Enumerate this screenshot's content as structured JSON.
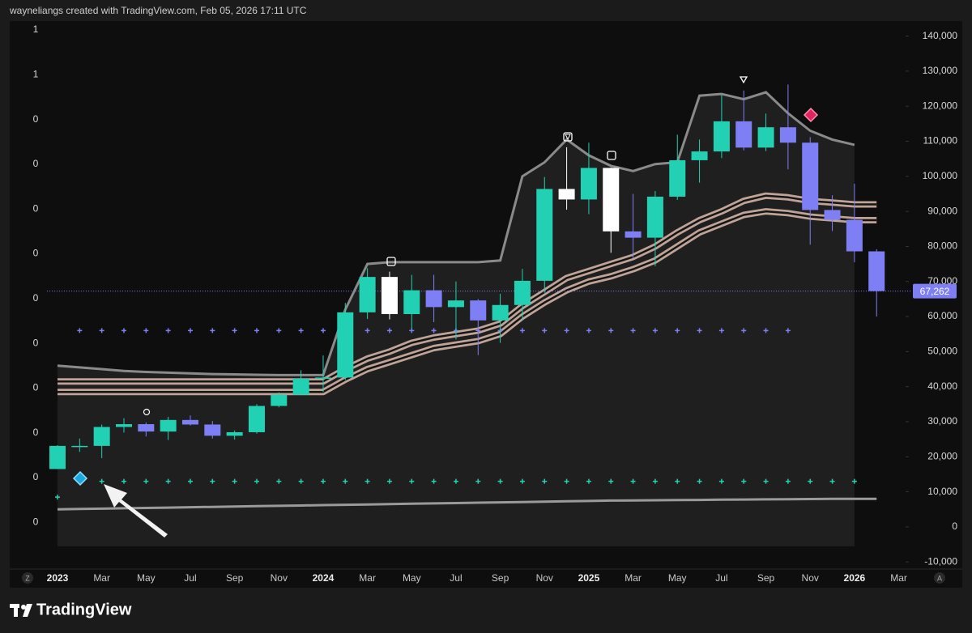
{
  "header": "wayneliangs created with TradingView.com, Feb 05, 2026 17:11 UTC",
  "brand": "TradingView",
  "axis_buttons": [
    "Z",
    "A"
  ],
  "chart_data": {
    "type": "candlestick",
    "categories": [
      "2023",
      null,
      "Mar",
      null,
      "May",
      null,
      "Jul",
      null,
      "Sep",
      null,
      "Nov",
      null,
      "2024",
      null,
      "Mar",
      null,
      "May",
      null,
      "Jul",
      null,
      "Sep",
      null,
      "Nov",
      null,
      "2025",
      null,
      "Mar",
      null,
      "May",
      null,
      "Jul",
      null,
      "Sep",
      null,
      "Nov",
      null,
      "2026",
      null,
      "Mar"
    ],
    "open": [
      16500,
      23100,
      23100,
      28500,
      29300,
      27200,
      30500,
      29200,
      26000,
      27000,
      34500,
      37700,
      42300,
      42600,
      61200,
      71300,
      60700,
      67500,
      62700,
      64600,
      58900,
      63300,
      70200,
      96400,
      93400,
      102400,
      84300,
      82500,
      94200,
      104600,
      107100,
      115700,
      108200,
      114000,
      109600,
      90400,
      87600,
      78600,
      null
    ],
    "high": [
      23300,
      25200,
      29200,
      31000,
      29800,
      31400,
      31800,
      30200,
      27500,
      35000,
      38400,
      44700,
      48900,
      63900,
      73800,
      72800,
      71900,
      71900,
      70000,
      65000,
      66500,
      73600,
      99800,
      108300,
      109600,
      102500,
      95000,
      95800,
      111900,
      110500,
      123200,
      124500,
      117900,
      126200,
      111200,
      94600,
      97900,
      79200,
      null
    ],
    "low": [
      16500,
      21400,
      19600,
      26900,
      25800,
      24800,
      28900,
      25200,
      24900,
      26600,
      34100,
      37600,
      38500,
      41900,
      59300,
      59200,
      56600,
      58400,
      53500,
      49000,
      52500,
      58900,
      66800,
      90500,
      89200,
      78200,
      76600,
      74400,
      93300,
      98200,
      105200,
      107400,
      107200,
      102000,
      80500,
      84400,
      75500,
      60000,
      null
    ],
    "close": [
      23100,
      23100,
      28500,
      29300,
      27200,
      30500,
      29200,
      26000,
      27000,
      34500,
      37700,
      42300,
      42600,
      61200,
      71300,
      60700,
      67500,
      62700,
      64600,
      58900,
      63300,
      70200,
      96400,
      93400,
      102400,
      84300,
      82500,
      94200,
      104600,
      107100,
      115700,
      108200,
      114000,
      109600,
      90400,
      87600,
      78600,
      67262,
      null
    ],
    "candle_colors": [
      "#22d1b4",
      "#22d1b4",
      "#22d1b4",
      "#22d1b4",
      "#7f7ff5",
      "#22d1b4",
      "#7f7ff5",
      "#7f7ff5",
      "#22d1b4",
      "#22d1b4",
      "#22d1b4",
      "#22d1b4",
      "#22d1b4",
      "#22d1b4",
      "#22d1b4",
      "#ffffff",
      "#22d1b4",
      "#7f7ff5",
      "#22d1b4",
      "#7f7ff5",
      "#22d1b4",
      "#22d1b4",
      "#22d1b4",
      "#ffffff",
      "#22d1b4",
      "#ffffff",
      "#7f7ff5",
      "#22d1b4",
      "#22d1b4",
      "#22d1b4",
      "#22d1b4",
      "#7f7ff5",
      "#22d1b4",
      "#7f7ff5",
      "#7f7ff5",
      "#7f7ff5",
      "#7f7ff5",
      "#7f7ff5",
      null
    ],
    "series": [
      {
        "style": "band",
        "color": "#8a8a8a",
        "values": [
          46000,
          45500,
          45000,
          44500,
          44200,
          44000,
          43800,
          43600,
          43500,
          43400,
          43300,
          43300,
          43300,
          62000,
          75000,
          75500,
          75500,
          75500,
          75500,
          75500,
          76000,
          100000,
          104000,
          110500,
          106000,
          103000,
          101500,
          103500,
          104000,
          123000,
          123500,
          122000,
          124000,
          118000,
          113000,
          110500,
          109000,
          null,
          null
        ]
      },
      {
        "style": "ribbon",
        "color": "#bfa396",
        "values": [
          41500,
          41500,
          41500,
          41500,
          41500,
          41500,
          41500,
          41500,
          41500,
          41500,
          41500,
          41500,
          41500,
          45000,
          48000,
          50000,
          52500,
          54000,
          55000,
          56000,
          58000,
          63000,
          67000,
          71000,
          73000,
          75000,
          77000,
          80000,
          84000,
          87500,
          90000,
          93000,
          94500,
          94000,
          93000,
          92500,
          92000,
          92000,
          null
        ]
      },
      {
        "style": "ribbon",
        "color": "#bfa396",
        "values": [
          38500,
          38500,
          38500,
          38500,
          38500,
          38500,
          38500,
          38500,
          38500,
          38500,
          38500,
          38500,
          38500,
          42000,
          45000,
          47000,
          49000,
          51000,
          52000,
          53000,
          55000,
          60000,
          64000,
          67500,
          70000,
          71500,
          73500,
          76000,
          80000,
          84000,
          86500,
          89000,
          90000,
          89500,
          88500,
          88000,
          87500,
          87500,
          null
        ]
      },
      {
        "style": "line",
        "color": "#9a9a9a",
        "values": [
          5000,
          5100,
          5200,
          5300,
          5400,
          5500,
          5600,
          5700,
          5800,
          5900,
          6000,
          6100,
          6200,
          6300,
          6400,
          6500,
          6600,
          6700,
          6800,
          6900,
          7000,
          7100,
          7200,
          7300,
          7400,
          7500,
          7550,
          7600,
          7650,
          7700,
          7750,
          7800,
          7850,
          7900,
          7950,
          8000,
          8000,
          8000,
          null
        ]
      },
      {
        "style": "dots",
        "color": "#7f7ff5",
        "values": [
          null,
          56000,
          56000,
          56000,
          56000,
          56000,
          56000,
          56000,
          56000,
          56000,
          56000,
          56000,
          56000,
          56000,
          56000,
          56000,
          56000,
          56000,
          56000,
          56000,
          56000,
          56000,
          56000,
          56000,
          56000,
          56000,
          56000,
          56000,
          56000,
          56000,
          56000,
          56000,
          56000,
          56000,
          null,
          null,
          null,
          null,
          null
        ]
      },
      {
        "style": "dots",
        "color": "#22d1b4",
        "values": [
          8500,
          null,
          13000,
          13000,
          13000,
          13000,
          13000,
          13000,
          13000,
          13000,
          13000,
          13000,
          13000,
          13000,
          13000,
          13000,
          13000,
          13000,
          13000,
          13000,
          13000,
          13000,
          13000,
          13000,
          13000,
          13000,
          13000,
          13000,
          13000,
          13000,
          13000,
          13000,
          13000,
          13000,
          13000,
          13000,
          13000,
          null,
          null
        ]
      }
    ],
    "ylim": [
      -11800,
      144300
    ],
    "yticks": [
      {
        "value": -10000,
        "label": "-10,000"
      },
      0,
      {
        "value": 10000,
        "label": "10,000"
      },
      {
        "value": 20000,
        "label": "20,000"
      },
      {
        "value": 30000,
        "label": "30,000"
      },
      {
        "value": 40000,
        "label": "40,000"
      },
      {
        "value": 50000,
        "label": "50,000"
      },
      {
        "value": 60000,
        "label": "60,000"
      },
      {
        "value": 70000,
        "label": "70,000"
      },
      {
        "value": 80000,
        "label": "80,000"
      },
      {
        "value": 90000,
        "label": "90,000"
      },
      {
        "value": 100000,
        "label": "100,000"
      },
      {
        "value": 110000,
        "label": "110,000"
      },
      {
        "value": 120000,
        "label": "120,000"
      },
      {
        "value": 130000,
        "label": "130,000"
      },
      {
        "value": 140000,
        "label": "140,000"
      }
    ],
    "left_axis_labels": [
      "1",
      "1",
      "0",
      "0",
      "0",
      "0",
      "0",
      "0",
      "0",
      "0",
      "0",
      "0"
    ],
    "last_price": {
      "value": 67262,
      "label": "67,262",
      "color": "#7f7ff5"
    }
  }
}
